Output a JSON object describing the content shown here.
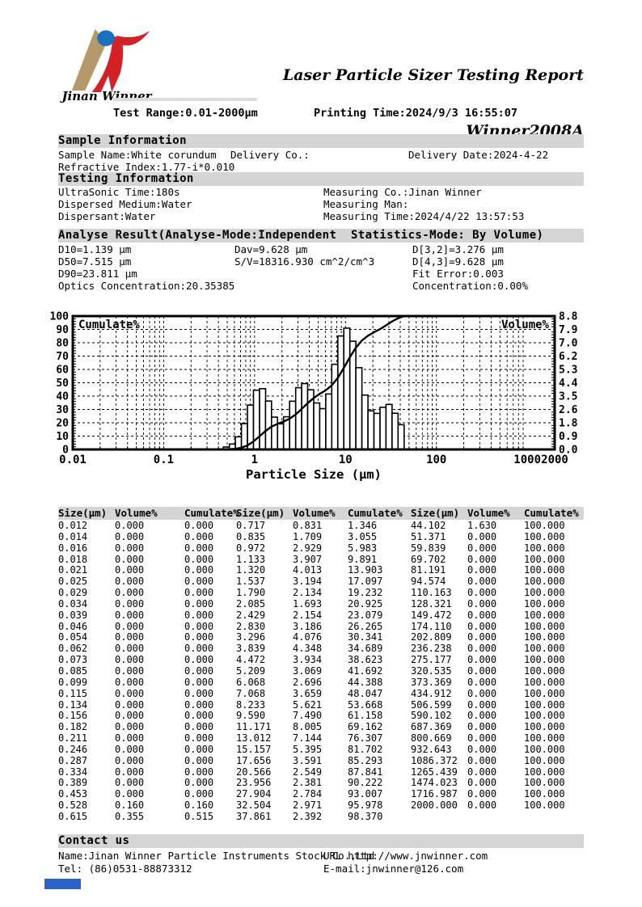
{
  "header": {
    "logo_caption": "Jinan Winner",
    "title_line1": "Laser Particle Sizer Testing Report",
    "title_line2": "Winner2008A",
    "test_range": "Test Range:0.01-2000μm",
    "printing_time": "Printing Time:2024/9/3 16:55:07"
  },
  "sample_information": {
    "section_title": "Sample Information",
    "sample_name": "Sample Name:White corundum",
    "delivery_co": "Delivery Co.:",
    "delivery_date": "Delivery Date:2024-4-22",
    "refractive_index": "Refractive Index:1.77-i*0.010"
  },
  "testing_information": {
    "section_title": "Testing Information",
    "ultrasonic_time": "UltraSonic Time:180s",
    "dispersed_medium": "Dispersed Medium:Water",
    "dispersant": "Dispersant:Water",
    "measuring_co": "Measuring Co.:Jinan Winner",
    "measuring_man": "Measuring Man:",
    "measuring_time": "Measuring Time:2024/4/22 13:57:53"
  },
  "analyse_result": {
    "section_title": "Analyse Result(Analyse-Mode:Independent  Statistics-Mode: By Volume)",
    "d10": "D10=1.139 μm",
    "d50": "D50=7.515 μm",
    "d90": "D90=23.811 μm",
    "optics_concentration": "Optics Concentration:20.35385",
    "dav": "Dav=9.628 μm",
    "sv": "S/V=18316.930 cm^2/cm^3",
    "d32": "D[3,2]=3.276 μm",
    "d43": "D[4,3]=9.628 μm",
    "fit_error": "Fit Error:0.003",
    "concentration": "Concentration:0.00%"
  },
  "chart_data": {
    "type": "bar",
    "subtype": "log-histogram with cumulative line",
    "title": "",
    "xlabel": "Particle Size (μm)",
    "left_axis_label": "Cumulate%",
    "right_axis_label": "Volume%",
    "xlim": [
      0.01,
      2000
    ],
    "left_ylim": [
      0,
      100
    ],
    "right_ylim": [
      0,
      8.8
    ],
    "right_max": 8.8,
    "grid": "dashed log grid",
    "x_ticks": [
      "0.01",
      "0.1",
      "1",
      "10",
      "100",
      "1000",
      "2000"
    ],
    "x_tick_values": [
      0.01,
      0.1,
      1,
      10,
      100,
      1000,
      2000
    ],
    "left_ticks": [
      "0",
      "10",
      "20",
      "30",
      "40",
      "50",
      "60",
      "70",
      "80",
      "90",
      "100"
    ],
    "right_ticks": [
      "0.0",
      "0.9",
      "1.8",
      "2.6",
      "3.5",
      "4.4",
      "5.3",
      "6.2",
      "7.0",
      "7.9",
      "8.8"
    ],
    "sizes": [
      0.012,
      0.014,
      0.016,
      0.018,
      0.021,
      0.025,
      0.029,
      0.034,
      0.039,
      0.046,
      0.054,
      0.062,
      0.073,
      0.085,
      0.099,
      0.115,
      0.134,
      0.156,
      0.182,
      0.211,
      0.246,
      0.287,
      0.334,
      0.389,
      0.453,
      0.528,
      0.615,
      0.717,
      0.835,
      0.972,
      1.133,
      1.32,
      1.537,
      1.79,
      2.085,
      2.429,
      2.83,
      3.296,
      3.839,
      4.472,
      5.209,
      6.068,
      7.068,
      8.233,
      9.59,
      11.171,
      13.012,
      15.157,
      17.656,
      20.566,
      23.956,
      27.904,
      32.504,
      37.861,
      44.102,
      51.371,
      59.839,
      69.702,
      81.191,
      94.574,
      110.163,
      128.321,
      149.472,
      174.11,
      202.809,
      236.238,
      275.177,
      320.535,
      373.369,
      434.912,
      506.599,
      590.102,
      687.369,
      800.669,
      932.643,
      1086.372,
      1265.439,
      1474.023,
      1716.987,
      2000
    ],
    "volume": [
      0,
      0,
      0,
      0,
      0,
      0,
      0,
      0,
      0,
      0,
      0,
      0,
      0,
      0,
      0,
      0,
      0,
      0,
      0,
      0,
      0,
      0,
      0,
      0,
      0,
      0.16,
      0.355,
      0.831,
      1.709,
      2.929,
      3.907,
      4.013,
      3.194,
      2.134,
      1.693,
      2.154,
      3.186,
      4.076,
      4.348,
      3.934,
      3.069,
      2.696,
      3.659,
      5.621,
      7.49,
      8.005,
      7.144,
      5.395,
      3.591,
      2.549,
      2.381,
      2.784,
      2.971,
      2.392,
      1.63,
      0,
      0,
      0,
      0,
      0,
      0,
      0,
      0,
      0,
      0,
      0,
      0,
      0,
      0,
      0,
      0,
      0,
      0,
      0,
      0,
      0,
      0,
      0,
      0,
      0
    ],
    "cumulate": [
      0,
      0,
      0,
      0,
      0,
      0,
      0,
      0,
      0,
      0,
      0,
      0,
      0,
      0,
      0,
      0,
      0,
      0,
      0,
      0,
      0,
      0,
      0,
      0,
      0,
      0.16,
      0.515,
      1.346,
      3.055,
      5.983,
      9.891,
      13.903,
      17.097,
      19.232,
      20.925,
      23.079,
      26.265,
      30.341,
      34.689,
      38.623,
      41.692,
      44.388,
      48.047,
      53.668,
      61.158,
      69.162,
      76.307,
      81.702,
      85.293,
      87.841,
      90.222,
      93.007,
      95.978,
      98.37,
      100,
      100,
      100,
      100,
      100,
      100,
      100,
      100,
      100,
      100,
      100,
      100,
      100,
      100,
      100,
      100,
      100,
      100,
      100,
      100,
      100,
      100,
      100,
      100,
      100,
      100
    ]
  },
  "table": {
    "headers": [
      "Size(μm)",
      "Volume%",
      "Cumulate%"
    ],
    "rows_per_group": 27,
    "groups": 3,
    "decimals": 3
  },
  "contact": {
    "section_title": "Contact us",
    "name": "Name:Jinan Winner Particle Instruments Stock Co.,Ltd",
    "url": "URL http://www.jnwinner.com",
    "tel": "Tel: (86)0531-88873312",
    "email": "E-mail:jnwinner@126.com"
  },
  "colors": {
    "section_bg": "#d5d5d5",
    "footer_mark_blue": "#2e62c8",
    "logo_blue": "#1b6fc0",
    "logo_red": "#d42127",
    "logo_tan": "#b5996b",
    "ink": "#000000"
  }
}
